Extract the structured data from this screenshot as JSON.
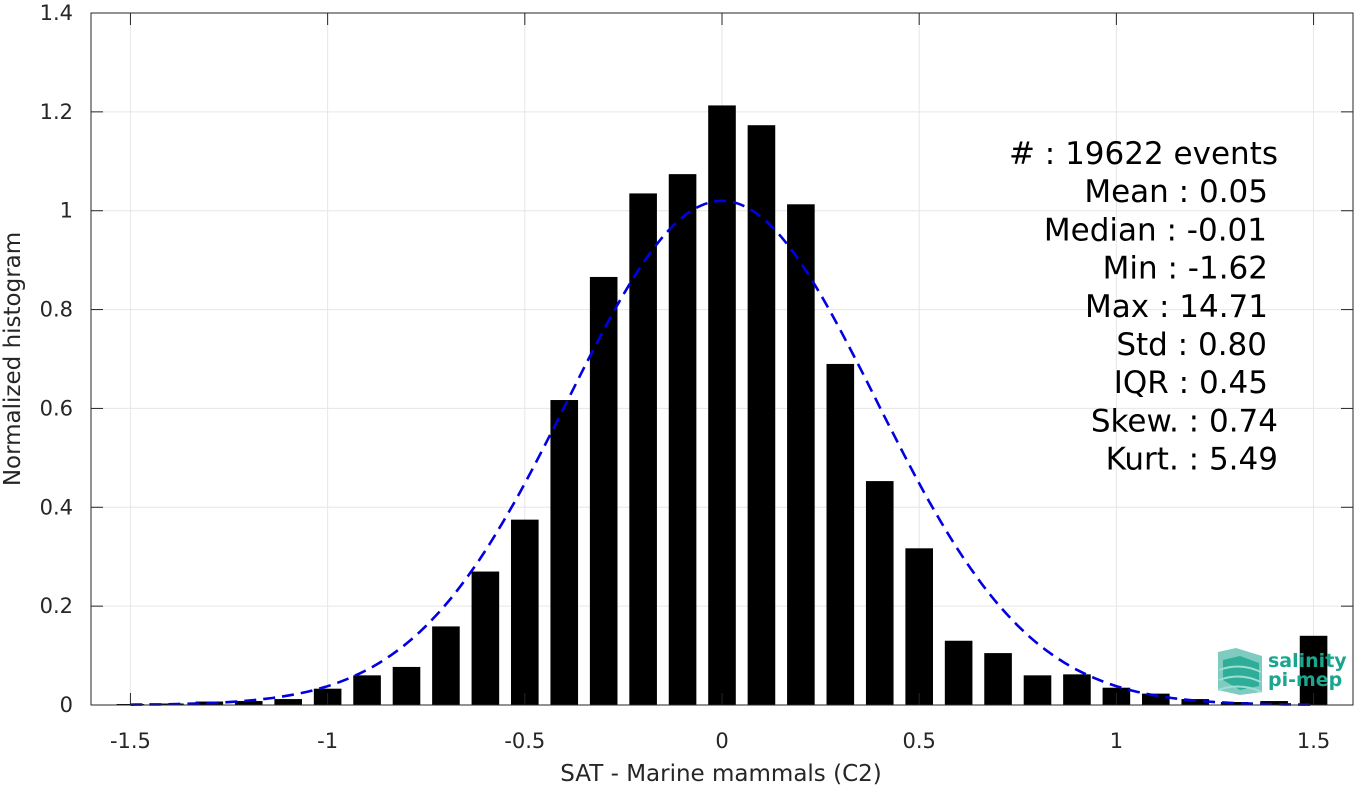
{
  "chart_data": {
    "type": "bar",
    "xlabel": "SAT - Marine mammals (C2)",
    "ylabel": "Normalized histogram",
    "xlim": [
      -1.6,
      1.6
    ],
    "ylim": [
      0,
      1.4
    ],
    "xticks": [
      -1.5,
      -1,
      -0.5,
      0,
      0.5,
      1,
      1.5
    ],
    "xtick_labels": [
      "-1.5",
      "-1",
      "-0.5",
      "0",
      "0.5",
      "1",
      "1.5"
    ],
    "yticks": [
      0,
      0.2,
      0.4,
      0.6,
      0.8,
      1,
      1.2,
      1.4
    ],
    "ytick_labels": [
      "0",
      "0.2",
      "0.4",
      "0.6",
      "0.8",
      "1",
      "1.2",
      "1.4"
    ],
    "grid": true,
    "bar_color": "#000000",
    "bar_width": 0.07,
    "bins": [
      -1.5,
      -1.4,
      -1.3,
      -1.2,
      -1.1,
      -1.0,
      -0.9,
      -0.8,
      -0.7,
      -0.6,
      -0.5,
      -0.4,
      -0.3,
      -0.2,
      -0.1,
      0.0,
      0.1,
      0.2,
      0.3,
      0.4,
      0.5,
      0.6,
      0.7,
      0.8,
      0.9,
      1.0,
      1.1,
      1.2,
      1.3,
      1.4,
      1.5
    ],
    "values": [
      0.002,
      0.003,
      0.007,
      0.008,
      0.012,
      0.033,
      0.06,
      0.077,
      0.159,
      0.27,
      0.375,
      0.617,
      0.866,
      1.035,
      1.074,
      1.213,
      1.173,
      1.013,
      0.69,
      0.453,
      0.317,
      0.13,
      0.105,
      0.06,
      0.062,
      0.035,
      0.023,
      0.012,
      0.006,
      0.008,
      0.14
    ],
    "fit_curve": {
      "type": "gaussian",
      "mean": 0.0,
      "std": 0.39,
      "peak": 1.02,
      "x_range": [
        -1.5,
        1.5
      ],
      "color": "#0000e0",
      "style": "dashed"
    },
    "stats_lines": [
      "#  : 19622 events",
      "Mean : 0.05",
      "Median : -0.01",
      "Min : -1.62",
      "Max : 14.71",
      "Std : 0.80",
      "IQR : 0.45",
      "Skew. : 0.74",
      "Kurt. : 5.49"
    ]
  },
  "logo": {
    "line1": "salinity",
    "line2": "pi-mep",
    "color": "#1aa58f"
  }
}
